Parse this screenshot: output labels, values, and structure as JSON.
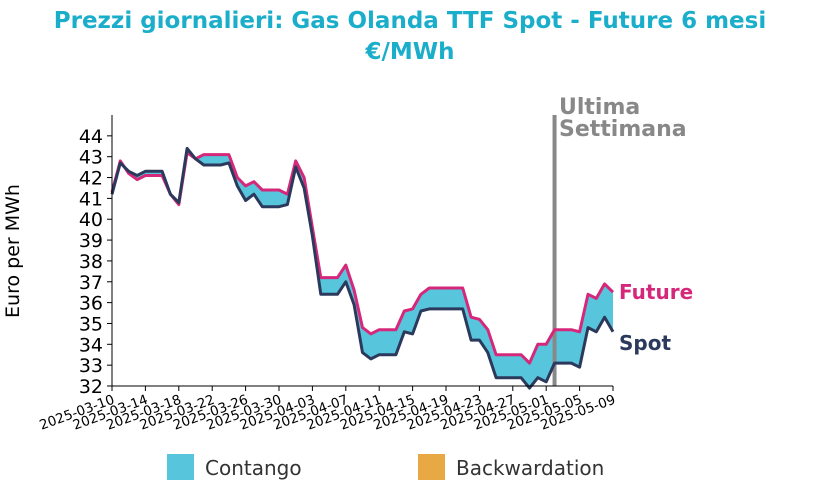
{
  "chart_data": {
    "type": "line",
    "title": "Prezzi giornalieri: Gas Olanda TTF Spot - Future 6 mesi",
    "subtitle": "€/MWh",
    "ylabel": "Euro per MWh",
    "xlabel": "",
    "ylim": [
      32,
      45
    ],
    "yticks": [
      32,
      33,
      34,
      35,
      36,
      37,
      38,
      39,
      40,
      41,
      42,
      43,
      44
    ],
    "x_range": [
      "2025-03-10",
      "2025-05-09"
    ],
    "xticks": [
      "2025-03-10",
      "2025-03-14",
      "2025-03-18",
      "2025-03-22",
      "2025-03-26",
      "2025-03-30",
      "2025-04-03",
      "2025-04-07",
      "2025-04-11",
      "2025-04-15",
      "2025-04-19",
      "2025-04-23",
      "2025-04-27",
      "2025-05-01",
      "2025-05-05",
      "2025-05-09"
    ],
    "x": [
      "2025-03-10",
      "2025-03-11",
      "2025-03-12",
      "2025-03-13",
      "2025-03-14",
      "2025-03-15",
      "2025-03-16",
      "2025-03-17",
      "2025-03-18",
      "2025-03-19",
      "2025-03-20",
      "2025-03-21",
      "2025-03-22",
      "2025-03-23",
      "2025-03-24",
      "2025-03-25",
      "2025-03-26",
      "2025-03-27",
      "2025-03-28",
      "2025-03-29",
      "2025-03-30",
      "2025-03-31",
      "2025-04-01",
      "2025-04-02",
      "2025-04-03",
      "2025-04-04",
      "2025-04-05",
      "2025-04-06",
      "2025-04-07",
      "2025-04-08",
      "2025-04-09",
      "2025-04-10",
      "2025-04-11",
      "2025-04-12",
      "2025-04-13",
      "2025-04-14",
      "2025-04-15",
      "2025-04-16",
      "2025-04-17",
      "2025-04-18",
      "2025-04-19",
      "2025-04-20",
      "2025-04-21",
      "2025-04-22",
      "2025-04-23",
      "2025-04-24",
      "2025-04-25",
      "2025-04-26",
      "2025-04-27",
      "2025-04-28",
      "2025-04-29",
      "2025-04-30",
      "2025-05-01",
      "2025-05-02",
      "2025-05-03",
      "2025-05-04",
      "2025-05-05",
      "2025-05-06",
      "2025-05-07",
      "2025-05-08",
      "2025-05-09"
    ],
    "series": [
      {
        "name": "Future",
        "color": "#d6287a",
        "values": [
          41.3,
          42.8,
          42.2,
          41.9,
          42.1,
          42.1,
          42.1,
          41.2,
          40.7,
          43.2,
          42.9,
          43.1,
          43.1,
          43.1,
          43.1,
          42.0,
          41.6,
          41.8,
          41.4,
          41.4,
          41.4,
          41.2,
          42.8,
          42.0,
          39.6,
          37.2,
          37.2,
          37.2,
          37.8,
          36.6,
          34.8,
          34.5,
          34.7,
          34.7,
          34.7,
          35.6,
          35.7,
          36.4,
          36.7,
          36.7,
          36.7,
          36.7,
          36.7,
          35.3,
          35.2,
          34.7,
          33.5,
          33.5,
          33.5,
          33.5,
          33.1,
          34.0,
          34.0,
          34.7,
          34.7,
          34.7,
          34.6,
          36.4,
          36.2,
          36.9,
          36.5
        ]
      },
      {
        "name": "Spot",
        "color": "#2b3a5c",
        "values": [
          41.2,
          42.7,
          42.3,
          42.1,
          42.3,
          42.3,
          42.3,
          41.2,
          40.8,
          43.4,
          42.9,
          42.6,
          42.6,
          42.6,
          42.7,
          41.6,
          40.9,
          41.2,
          40.6,
          40.6,
          40.6,
          40.7,
          42.5,
          41.5,
          39.2,
          36.4,
          36.4,
          36.4,
          37.0,
          35.9,
          33.6,
          33.3,
          33.5,
          33.5,
          33.5,
          34.6,
          34.5,
          35.6,
          35.7,
          35.7,
          35.7,
          35.7,
          35.7,
          34.2,
          34.2,
          33.6,
          32.4,
          32.4,
          32.4,
          32.4,
          31.9,
          32.4,
          32.2,
          33.1,
          33.1,
          33.1,
          32.9,
          34.8,
          34.6,
          35.3,
          34.6
        ]
      }
    ],
    "fill_legend": [
      {
        "label": "Contango",
        "color": "#57c5dc"
      },
      {
        "label": "Backwardation",
        "color": "#e8a945"
      }
    ],
    "annotation": {
      "lines": [
        "Ultima",
        "Settimana"
      ],
      "date": "2025-05-02",
      "color": "#888888"
    }
  }
}
